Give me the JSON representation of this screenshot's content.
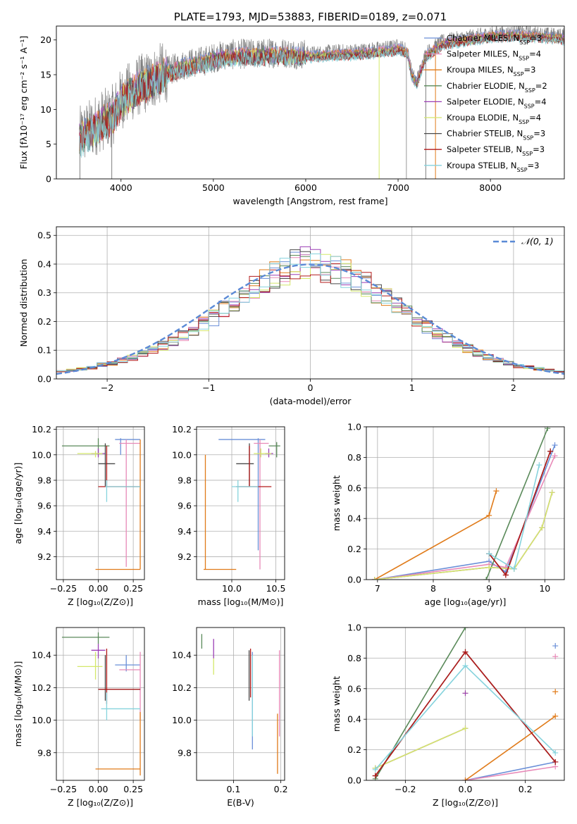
{
  "colors": {
    "chabrier_miles": "#6a8fd8",
    "salpeter_miles": "#e88ab8",
    "kroupa_miles": "#e07b1a",
    "chabrier_elodie": "#5a8a5a",
    "salpeter_elodie": "#9b3fb5",
    "kroupa_elodie": "#d4e86a",
    "chabrier_stelib": "#4a4a4a",
    "salpeter_stelib": "#b31b1b",
    "kroupa_stelib": "#86d3dd",
    "data": "#7f7f7f",
    "gauss": "#5b8ad6",
    "grid": "#b0b0b0"
  },
  "legend": {
    "models": [
      {
        "key": "chabrier_miles",
        "label": "Chabrier MILES, N",
        "sub": "SSP",
        "suffix": "=3"
      },
      {
        "key": "salpeter_miles",
        "label": "Salpeter MILES, N",
        "sub": "SSP",
        "suffix": "=4"
      },
      {
        "key": "kroupa_miles",
        "label": "Kroupa MILES, N",
        "sub": "SSP",
        "suffix": "=3"
      },
      {
        "key": "chabrier_elodie",
        "label": "Chabrier ELODIE, N",
        "sub": "SSP",
        "suffix": "=2"
      },
      {
        "key": "salpeter_elodie",
        "label": "Salpeter ELODIE, N",
        "sub": "SSP",
        "suffix": "=4"
      },
      {
        "key": "kroupa_elodie",
        "label": "Kroupa ELODIE, N",
        "sub": "SSP",
        "suffix": "=4"
      },
      {
        "key": "chabrier_stelib",
        "label": "Chabrier STELIB, N",
        "sub": "SSP",
        "suffix": "=3"
      },
      {
        "key": "salpeter_stelib",
        "label": "Salpeter STELIB, N",
        "sub": "SSP",
        "suffix": "=3"
      },
      {
        "key": "kroupa_stelib",
        "label": "Kroupa STELIB, N",
        "sub": "SSP",
        "suffix": "=3"
      }
    ],
    "gauss_label": "𝒩(0, 1)"
  },
  "chart_data": [
    {
      "type": "line",
      "title": "PLATE=1793, MJD=53883, FIBERID=0189, z=0.071",
      "xlabel": "wavelength [Angstrom, rest frame]",
      "ylabel": "Flux [fλ10⁻¹⁷ erg cm⁻² s⁻¹ A⁻¹]",
      "xlim": [
        3300,
        8800
      ],
      "ylim": [
        0,
        22
      ],
      "xticks": [
        "4000",
        "5000",
        "6000",
        "7000",
        "8000"
      ],
      "yticks": [
        "0",
        "5",
        "10",
        "15",
        "20"
      ],
      "grid": false,
      "legend_position": "top-right",
      "continuum": {
        "x": [
          3550,
          3600,
          3700,
          3800,
          3900,
          4000,
          4100,
          4200,
          4300,
          4400,
          4500,
          4700,
          4900,
          5100,
          5300,
          5500,
          5700,
          5900,
          6100,
          6300,
          6500,
          6700,
          6900,
          7000,
          7100,
          7150,
          7200,
          7300,
          7400,
          7500,
          7700,
          8000,
          8300,
          8800
        ],
        "y": [
          6,
          6.5,
          7.5,
          8.5,
          9,
          11.5,
          12.5,
          13.5,
          14,
          15,
          15.5,
          16.5,
          17,
          17.8,
          18,
          18,
          18.2,
          18,
          18,
          18.2,
          18.3,
          18.5,
          18.8,
          19,
          18.5,
          15,
          14,
          18,
          19,
          19.8,
          20.2,
          20.8,
          21,
          20.5
        ]
      }
    },
    {
      "type": "step",
      "xlabel": "(data-model)/error",
      "ylabel": "Normed distribution",
      "xlim": [
        -2.5,
        2.5
      ],
      "ylim": [
        0,
        0.53
      ],
      "xticks": [
        "−2",
        "−1",
        "0",
        "1",
        "2"
      ],
      "yticks": [
        "0.0",
        "0.1",
        "0.2",
        "0.3",
        "0.4",
        "0.5"
      ],
      "grid": true,
      "legend_position": "top-right",
      "bin_edges": [
        -2.6,
        -2.5,
        -2.4,
        -2.3,
        -2.2,
        -2.1,
        -2.0,
        -1.9,
        -1.8,
        -1.7,
        -1.6,
        -1.5,
        -1.4,
        -1.3,
        -1.2,
        -1.1,
        -1.0,
        -0.9,
        -0.8,
        -0.7,
        -0.6,
        -0.5,
        -0.4,
        -0.3,
        -0.2,
        -0.1,
        0.0,
        0.1,
        0.2,
        0.3,
        0.4,
        0.5,
        0.6,
        0.7,
        0.8,
        0.9,
        1.0,
        1.1,
        1.2,
        1.3,
        1.4,
        1.5,
        1.6,
        1.7,
        1.8,
        1.9,
        2.0,
        2.1,
        2.2,
        2.3,
        2.4,
        2.5,
        2.6
      ],
      "base_density": [
        0.02,
        0.025,
        0.03,
        0.035,
        0.04,
        0.05,
        0.055,
        0.065,
        0.075,
        0.085,
        0.1,
        0.115,
        0.13,
        0.15,
        0.17,
        0.19,
        0.215,
        0.24,
        0.265,
        0.29,
        0.315,
        0.34,
        0.36,
        0.38,
        0.395,
        0.405,
        0.4,
        0.39,
        0.38,
        0.365,
        0.35,
        0.33,
        0.305,
        0.28,
        0.255,
        0.23,
        0.205,
        0.18,
        0.16,
        0.14,
        0.12,
        0.105,
        0.09,
        0.075,
        0.065,
        0.055,
        0.045,
        0.04,
        0.035,
        0.03,
        0.025,
        0.02
      ],
      "gaussian": {
        "mean": 0,
        "sigma": 1
      }
    },
    {
      "type": "scatter",
      "xlabel": "Z [log₁₀(Z/Z⊙)]",
      "ylabel": "age  [log₁₀(age/yr)]",
      "xlim": [
        -0.3,
        0.33
      ],
      "ylim": [
        9.02,
        10.22
      ],
      "xticks": [
        "−0.25",
        "0.00",
        "0.25"
      ],
      "yticks": [
        "9.2",
        "9.4",
        "9.6",
        "9.8",
        "10.0",
        "10.2"
      ],
      "grid": true,
      "points": [
        {
          "model": "chabrier_miles",
          "x": 0.16,
          "y": 10.12,
          "xmin": 0.12,
          "xmax": 0.3,
          "ymin": 10.0,
          "ymax": 10.13
        },
        {
          "model": "salpeter_miles",
          "x": 0.2,
          "y": 10.09,
          "xmin": 0.15,
          "xmax": 0.3,
          "ymin": 9.12,
          "ymax": 10.12
        },
        {
          "model": "kroupa_miles",
          "x": 0.3,
          "y": 9.1,
          "xmin": -0.02,
          "xmax": 0.3,
          "ymin": 9.1,
          "ymax": 10.12
        },
        {
          "model": "chabrier_elodie",
          "x": 0.0,
          "y": 10.07,
          "xmin": -0.26,
          "xmax": 0.08,
          "ymin": 10.0,
          "ymax": 10.13
        },
        {
          "model": "salpeter_elodie",
          "x": 0.0,
          "y": 10.01,
          "xmin": -0.05,
          "xmax": 0.05,
          "ymin": 9.98,
          "ymax": 10.05
        },
        {
          "model": "kroupa_elodie",
          "x": -0.02,
          "y": 10.01,
          "xmin": -0.15,
          "xmax": 0.03,
          "ymin": 9.98,
          "ymax": 10.03
        },
        {
          "model": "chabrier_stelib",
          "x": 0.05,
          "y": 9.93,
          "xmin": 0.0,
          "xmax": 0.12,
          "ymin": 9.75,
          "ymax": 10.09
        },
        {
          "model": "salpeter_stelib",
          "x": 0.06,
          "y": 9.75,
          "xmin": 0.0,
          "xmax": 0.3,
          "ymin": 9.75,
          "ymax": 10.07
        },
        {
          "model": "kroupa_stelib",
          "x": 0.06,
          "y": 9.75,
          "xmin": 0.05,
          "xmax": 0.3,
          "ymin": 9.63,
          "ymax": 9.8
        }
      ]
    },
    {
      "type": "scatter",
      "xlabel": "mass [log₁₀(M/M⊙)]",
      "ylabel": "",
      "xlim": [
        9.6,
        10.6
      ],
      "ylim": [
        9.02,
        10.22
      ],
      "xticks": [
        "10.0",
        "10.5"
      ],
      "yticks": [
        "9.2",
        "9.4",
        "9.6",
        "9.8",
        "10.0",
        "10.2"
      ],
      "grid": true,
      "points": [
        {
          "model": "chabrier_miles",
          "x": 10.3,
          "y": 10.12,
          "xmin": 9.85,
          "xmax": 10.38,
          "ymin": 9.25,
          "ymax": 10.13
        },
        {
          "model": "salpeter_miles",
          "x": 10.32,
          "y": 10.09,
          "xmin": 10.25,
          "xmax": 10.42,
          "ymin": 9.1,
          "ymax": 10.12
        },
        {
          "model": "kroupa_miles",
          "x": 9.7,
          "y": 9.1,
          "xmin": 9.68,
          "xmax": 10.05,
          "ymin": 9.1,
          "ymax": 10.0
        },
        {
          "model": "chabrier_elodie",
          "x": 10.51,
          "y": 10.07,
          "xmin": 10.42,
          "xmax": 10.55,
          "ymin": 9.98,
          "ymax": 10.1
        },
        {
          "model": "salpeter_elodie",
          "x": 10.42,
          "y": 10.01,
          "xmin": 10.38,
          "xmax": 10.47,
          "ymin": 9.98,
          "ymax": 10.05
        },
        {
          "model": "kroupa_elodie",
          "x": 10.33,
          "y": 10.01,
          "xmin": 10.25,
          "xmax": 10.45,
          "ymin": 9.98,
          "ymax": 10.05
        },
        {
          "model": "chabrier_stelib",
          "x": 10.2,
          "y": 9.93,
          "xmin": 10.05,
          "xmax": 10.25,
          "ymin": 9.75,
          "ymax": 10.09
        },
        {
          "model": "salpeter_stelib",
          "x": 10.2,
          "y": 9.75,
          "xmin": 10.05,
          "xmax": 10.45,
          "ymin": 9.75,
          "ymax": 10.07
        },
        {
          "model": "kroupa_stelib",
          "x": 10.07,
          "y": 9.75,
          "xmin": 10.0,
          "xmax": 10.3,
          "ymin": 9.63,
          "ymax": 9.8
        }
      ]
    },
    {
      "type": "line",
      "xlabel": "age  [log₁₀(age/yr)]",
      "ylabel": "mass weight",
      "xlim": [
        6.8,
        10.35
      ],
      "ylim": [
        0,
        1.0
      ],
      "xticks": [
        "7",
        "8",
        "9",
        "10"
      ],
      "yticks": [
        "0.0",
        "0.2",
        "0.4",
        "0.6",
        "0.8",
        "1.0"
      ],
      "grid": true,
      "series": [
        {
          "model": "chabrier_miles",
          "x": [
            6.95,
            9.0,
            9.3,
            10.18
          ],
          "y": [
            0.0,
            0.12,
            0.05,
            0.88
          ]
        },
        {
          "model": "salpeter_miles",
          "x": [
            6.95,
            9.0,
            9.3,
            10.18
          ],
          "y": [
            0.0,
            0.1,
            0.08,
            0.81
          ]
        },
        {
          "model": "kroupa_miles",
          "x": [
            6.95,
            9.0,
            9.13
          ],
          "y": [
            0.0,
            0.42,
            0.58
          ]
        },
        {
          "model": "chabrier_elodie",
          "x": [
            8.95,
            10.05
          ],
          "y": [
            0.0,
            0.99
          ]
        },
        {
          "model": "salpeter_elodie",
          "x": [
            6.95,
            9.0,
            9.45,
            9.95,
            10.13
          ],
          "y": [
            0.0,
            0.08,
            0.07,
            0.34,
            0.57
          ]
        },
        {
          "model": "kroupa_elodie",
          "x": [
            6.95,
            9.0,
            9.45,
            9.95,
            10.13
          ],
          "y": [
            0.0,
            0.08,
            0.07,
            0.34,
            0.57
          ]
        },
        {
          "model": "chabrier_stelib",
          "x": [
            9.0,
            9.3,
            10.1
          ],
          "y": [
            0.17,
            0.03,
            0.84
          ]
        },
        {
          "model": "salpeter_stelib",
          "x": [
            9.0,
            9.3,
            10.1
          ],
          "y": [
            0.17,
            0.03,
            0.84
          ]
        },
        {
          "model": "kroupa_stelib",
          "x": [
            9.0,
            9.45,
            9.9
          ],
          "y": [
            0.17,
            0.07,
            0.75
          ]
        }
      ]
    },
    {
      "type": "scatter",
      "xlabel": "Z [log₁₀(Z/Z⊙)]",
      "ylabel": "mass [log₁₀(M/M⊙)]",
      "xlim": [
        -0.3,
        0.33
      ],
      "ylim": [
        9.63,
        10.57
      ],
      "xticks": [
        "−0.25",
        "0.00",
        "0.25"
      ],
      "yticks": [
        "9.8",
        "10.0",
        "10.2",
        "10.4"
      ],
      "grid": true,
      "points": [
        {
          "model": "chabrier_miles",
          "x": 0.2,
          "y": 10.34,
          "xmin": 0.12,
          "xmax": 0.3,
          "ymin": 10.3,
          "ymax": 10.4
        },
        {
          "model": "salpeter_miles",
          "x": 0.3,
          "y": 10.31,
          "xmin": 0.15,
          "xmax": 0.3,
          "ymin": 10.0,
          "ymax": 10.42
        },
        {
          "model": "kroupa_miles",
          "x": 0.3,
          "y": 9.7,
          "xmin": -0.02,
          "xmax": 0.3,
          "ymin": 9.66,
          "ymax": 10.05
        },
        {
          "model": "chabrier_elodie",
          "x": 0.0,
          "y": 10.51,
          "xmin": -0.26,
          "xmax": 0.08,
          "ymin": 10.47,
          "ymax": 10.54
        },
        {
          "model": "salpeter_elodie",
          "x": 0.0,
          "y": 10.43,
          "xmin": -0.05,
          "xmax": 0.05,
          "ymin": 10.38,
          "ymax": 10.47
        },
        {
          "model": "kroupa_elodie",
          "x": -0.02,
          "y": 10.33,
          "xmin": -0.15,
          "xmax": 0.03,
          "ymin": 10.25,
          "ymax": 10.42
        },
        {
          "model": "chabrier_stelib",
          "x": 0.05,
          "y": 10.19,
          "xmin": 0.0,
          "xmax": 0.3,
          "ymin": 10.12,
          "ymax": 10.4
        },
        {
          "model": "salpeter_stelib",
          "x": 0.06,
          "y": 10.19,
          "xmin": 0.0,
          "xmax": 0.3,
          "ymin": 10.1,
          "ymax": 10.44
        },
        {
          "model": "kroupa_stelib",
          "x": 0.06,
          "y": 10.07,
          "xmin": 0.02,
          "xmax": 0.3,
          "ymin": 10.0,
          "ymax": 10.17
        }
      ]
    },
    {
      "type": "scatter",
      "xlabel": "E(B-V)",
      "ylabel": "",
      "xlim": [
        0.022,
        0.208
      ],
      "ylim": [
        9.63,
        10.57
      ],
      "xticks": [
        "0.1",
        "0.2"
      ],
      "yticks": [
        "9.8",
        "10.0",
        "10.2",
        "10.4"
      ],
      "grid": true,
      "points": [
        {
          "model": "chabrier_miles",
          "x": 0.14,
          "y": 10.2,
          "xmin": 0.14,
          "xmax": 0.14,
          "ymin": 9.82,
          "ymax": 10.42
        },
        {
          "model": "salpeter_miles",
          "x": 0.197,
          "y": 10.2,
          "xmin": 0.197,
          "xmax": 0.197,
          "ymin": 9.9,
          "ymax": 10.43
        },
        {
          "model": "kroupa_miles",
          "x": 0.193,
          "y": 9.85,
          "xmin": 0.193,
          "xmax": 0.193,
          "ymin": 9.67,
          "ymax": 10.04
        },
        {
          "model": "chabrier_elodie",
          "x": 0.033,
          "y": 10.48,
          "xmin": 0.033,
          "xmax": 0.033,
          "ymin": 10.44,
          "ymax": 10.53
        },
        {
          "model": "salpeter_elodie",
          "x": 0.058,
          "y": 10.45,
          "xmin": 0.058,
          "xmax": 0.058,
          "ymin": 10.38,
          "ymax": 10.5
        },
        {
          "model": "kroupa_elodie",
          "x": 0.058,
          "y": 10.33,
          "xmin": 0.058,
          "xmax": 0.058,
          "ymin": 10.28,
          "ymax": 10.38
        },
        {
          "model": "chabrier_stelib",
          "x": 0.133,
          "y": 10.25,
          "xmin": 0.133,
          "xmax": 0.133,
          "ymin": 10.12,
          "ymax": 10.43
        },
        {
          "model": "salpeter_stelib",
          "x": 0.136,
          "y": 10.25,
          "xmin": 0.136,
          "xmax": 0.136,
          "ymin": 10.14,
          "ymax": 10.44
        },
        {
          "model": "kroupa_stelib",
          "x": 0.14,
          "y": 10.15,
          "xmin": 0.14,
          "xmax": 0.14,
          "ymin": 9.9,
          "ymax": 10.4
        }
      ]
    },
    {
      "type": "line",
      "xlabel": "Z [log₁₀(Z/Z⊙)]",
      "ylabel": "mass weight",
      "xlim": [
        -0.33,
        0.33
      ],
      "ylim": [
        0,
        1.0
      ],
      "xticks": [
        "−0.2",
        "0.0",
        "0.2"
      ],
      "yticks": [
        "0.0",
        "0.2",
        "0.4",
        "0.6",
        "0.8",
        "1.0"
      ],
      "grid": true,
      "series": [
        {
          "model": "chabrier_miles",
          "x": [
            0.0,
            0.3
          ],
          "y": [
            0.0,
            0.12
          ]
        },
        {
          "model": "salpeter_miles",
          "x": [
            0.0,
            0.3
          ],
          "y": [
            0.0,
            0.09
          ]
        },
        {
          "model": "kroupa_miles",
          "x": [
            0.0,
            0.3
          ],
          "y": [
            0.0,
            0.42
          ]
        },
        {
          "model": "chabrier_elodie",
          "x": [
            -0.3,
            0.0
          ],
          "y": [
            0.01,
            1.0
          ]
        },
        {
          "model": "salpeter_elodie",
          "x": [
            -0.3,
            0.0
          ],
          "y": [
            0.08,
            0.34
          ]
        },
        {
          "model": "kroupa_elodie",
          "x": [
            -0.3,
            0.0
          ],
          "y": [
            0.08,
            0.34
          ]
        },
        {
          "model": "chabrier_stelib",
          "x": [
            -0.3,
            0.0,
            0.3
          ],
          "y": [
            0.03,
            0.84,
            0.12
          ]
        },
        {
          "model": "salpeter_stelib",
          "x": [
            -0.3,
            0.0,
            0.3
          ],
          "y": [
            0.03,
            0.84,
            0.12
          ]
        },
        {
          "model": "kroupa_stelib",
          "x": [
            -0.3,
            0.0,
            0.3
          ],
          "y": [
            0.07,
            0.75,
            0.18
          ]
        }
      ],
      "extra_markers": [
        {
          "model": "chabrier_miles",
          "x": 0.3,
          "y": 0.88
        },
        {
          "model": "salpeter_miles",
          "x": 0.3,
          "y": 0.81
        },
        {
          "model": "kroupa_miles",
          "x": 0.3,
          "y": 0.58
        },
        {
          "model": "kroupa_elodie",
          "x": 0.0,
          "y": 0.57
        },
        {
          "model": "salpeter_elodie",
          "x": 0.0,
          "y": 0.57
        }
      ]
    }
  ]
}
